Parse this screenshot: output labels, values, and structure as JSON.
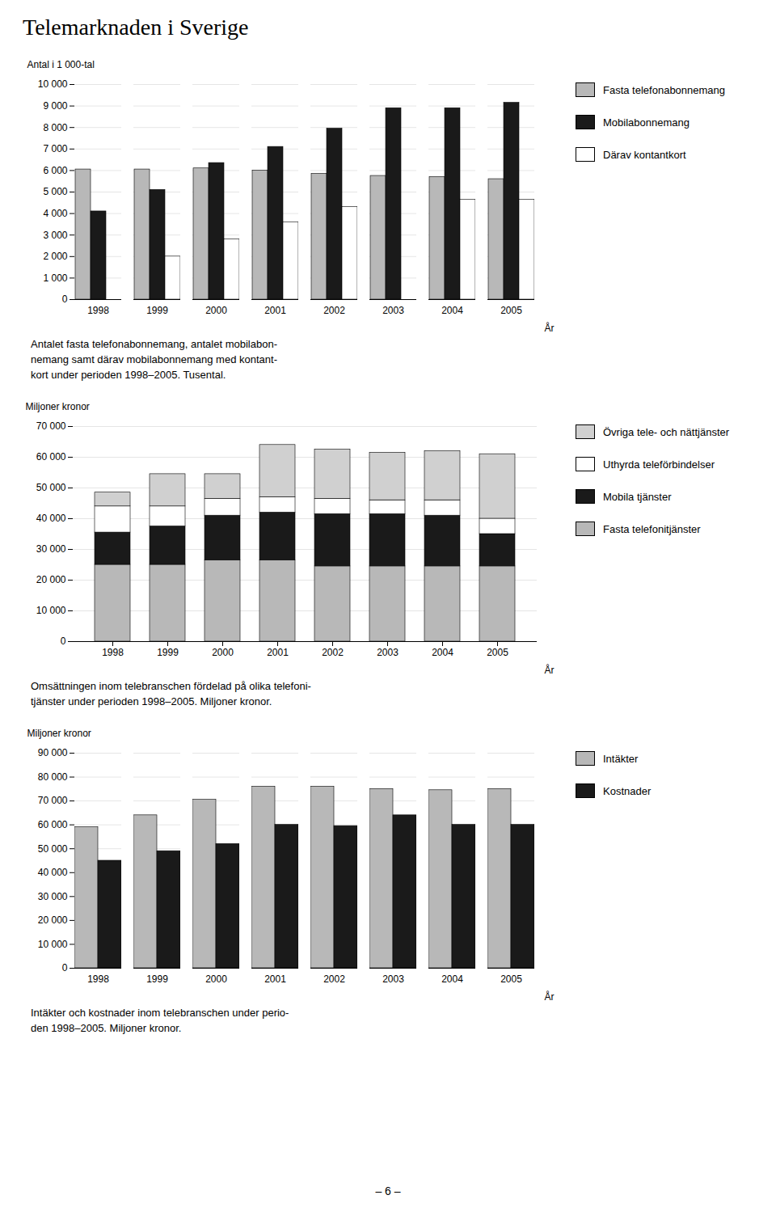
{
  "title": "Telemarknaden i Sverige",
  "annotations": [
    "– 6 –"
  ],
  "chart_data": [
    {
      "type": "bar",
      "ylabel": "Antal i 1 000-tal",
      "xlabel": "År",
      "categories": [
        "1998",
        "1999",
        "2000",
        "2001",
        "2002",
        "2003",
        "2004",
        "2005"
      ],
      "series": [
        {
          "name": "Fasta telefonabonnemang",
          "color": "#b8b8b8",
          "values": [
            6050,
            6050,
            6100,
            6000,
            5850,
            5750,
            5700,
            5600
          ]
        },
        {
          "name": "Mobilabonnemang",
          "color": "#1a1a1a",
          "values": [
            4100,
            5100,
            6350,
            7100,
            7950,
            8900,
            8900,
            9150
          ]
        },
        {
          "name": "Därav kontantkort",
          "color": "#ffffff",
          "values": [
            0,
            2000,
            2800,
            3600,
            4300,
            0,
            4650,
            4650
          ]
        }
      ],
      "ylim": [
        0,
        10000
      ],
      "yticks": [
        0,
        {
          "value": 1000,
          "label": "1 000"
        },
        {
          "value": 2000,
          "label": "2 000"
        },
        {
          "value": 3000,
          "label": "3 000"
        },
        {
          "value": 4000,
          "label": "4 000"
        },
        {
          "value": 5000,
          "label": "5 000"
        },
        {
          "value": 6000,
          "label": "6 000"
        },
        {
          "value": 7000,
          "label": "7 000"
        },
        {
          "value": 8000,
          "label": "8 000"
        },
        {
          "value": 9000,
          "label": "9 000"
        },
        {
          "value": 10000,
          "label": "10 000"
        }
      ],
      "grid": true,
      "legend": "right",
      "caption": [
        "Antalet fasta telefonabonnemang, antalet mobilabon-",
        "nemang samt därav mobilabonnemang med kontant-",
        "kort under perioden 1998–2005. Tusental."
      ]
    },
    {
      "type": "bar",
      "stacked": true,
      "ylabel": "Miljoner kronor",
      "xlabel": "År",
      "categories": [
        "1998",
        "1999",
        "2000",
        "2001",
        "2002",
        "2003",
        "2004",
        "2005"
      ],
      "series": [
        {
          "name": "Fasta telefonitjänster",
          "color": "#b8b8b8",
          "values": [
            25000,
            25000,
            26500,
            26500,
            24500,
            24500,
            24500,
            24500
          ]
        },
        {
          "name": "Mobila tjänster",
          "color": "#1a1a1a",
          "values": [
            10500,
            12500,
            14500,
            15500,
            17000,
            17000,
            16500,
            10500
          ]
        },
        {
          "name": "Uthyrda teleförbindelser",
          "color": "#ffffff",
          "values": [
            8500,
            6500,
            5500,
            5000,
            5000,
            4500,
            5000,
            5000
          ]
        },
        {
          "name": "Övriga tele- och nättjänster",
          "color": "#d0d0d0",
          "values": [
            4500,
            10500,
            8000,
            17000,
            16000,
            15500,
            16000,
            21000
          ]
        }
      ],
      "ylim": [
        0,
        70000
      ],
      "yticks": [
        0,
        {
          "value": 10000,
          "label": "10 000"
        },
        {
          "value": 20000,
          "label": "20 000"
        },
        {
          "value": 30000,
          "label": "30 000"
        },
        {
          "value": 40000,
          "label": "40 000"
        },
        {
          "value": 50000,
          "label": "50 000"
        },
        {
          "value": 60000,
          "label": "60 000"
        },
        {
          "value": 70000,
          "label": "70 000"
        }
      ],
      "grid": true,
      "legend": "right",
      "caption": [
        "Omsättningen inom telebranschen fördelad på olika telefoni-",
        "tjänster under perioden 1998–2005. Miljoner kronor."
      ]
    },
    {
      "type": "bar",
      "ylabel": "Miljoner kronor",
      "xlabel": "År",
      "categories": [
        "1998",
        "1999",
        "2000",
        "2001",
        "2002",
        "2003",
        "2004",
        "2005"
      ],
      "series": [
        {
          "name": "Intäkter",
          "color": "#b8b8b8",
          "values": [
            59000,
            64000,
            70500,
            76000,
            76000,
            75000,
            74500,
            75000
          ]
        },
        {
          "name": "Kostnader",
          "color": "#1a1a1a",
          "values": [
            45000,
            49000,
            52000,
            60000,
            59500,
            64000,
            60000,
            60000
          ]
        }
      ],
      "ylim": [
        0,
        90000
      ],
      "yticks": [
        0,
        {
          "value": 10000,
          "label": "10 000"
        },
        {
          "value": 20000,
          "label": "20 000"
        },
        {
          "value": 30000,
          "label": "30 000"
        },
        {
          "value": 40000,
          "label": "40 000"
        },
        {
          "value": 50000,
          "label": "50 000"
        },
        {
          "value": 60000,
          "label": "60 000"
        },
        {
          "value": 70000,
          "label": "70 000"
        },
        {
          "value": 80000,
          "label": "80 000"
        },
        {
          "value": 90000,
          "label": "90 000"
        }
      ],
      "grid": true,
      "legend": "right",
      "caption": [
        "Intäkter och kostnader inom telebranschen under perio-",
        "den 1998–2005. Miljoner kronor."
      ]
    }
  ]
}
